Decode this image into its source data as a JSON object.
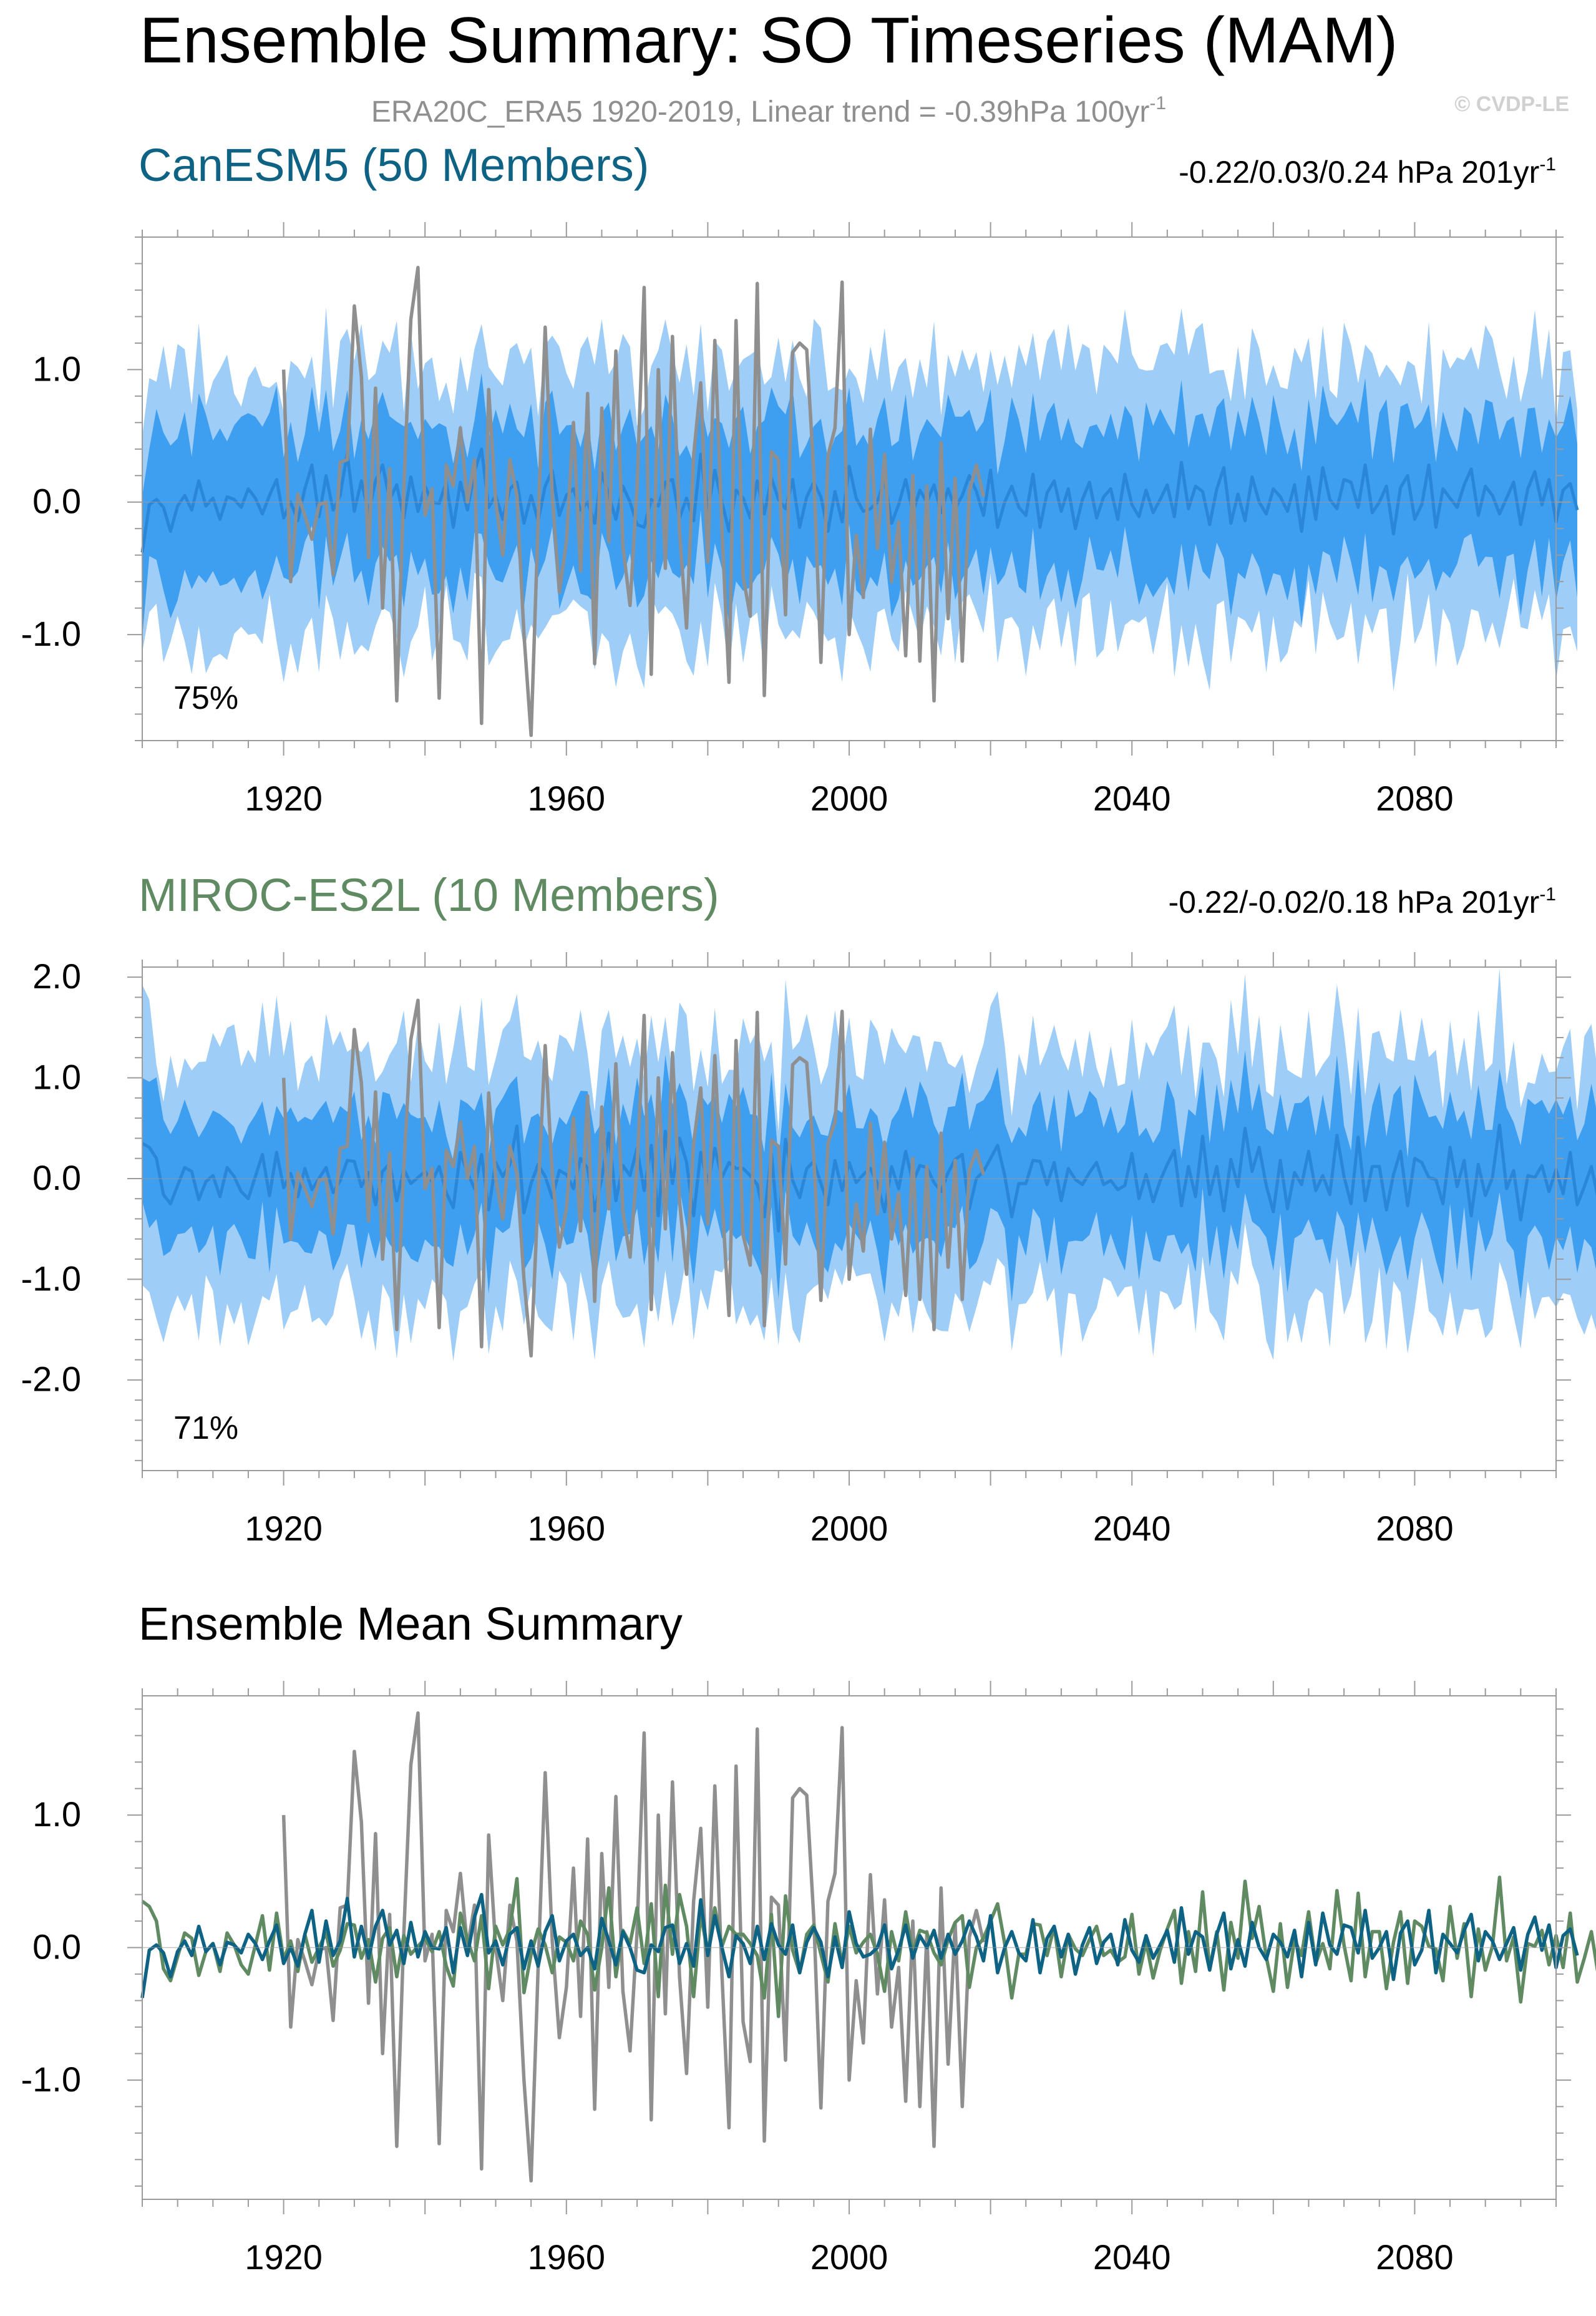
{
  "header": {
    "title": "Ensemble Summary: SO Timeseries (MAM)",
    "subtitle_main": "ERA20C_ERA5 1920-2019, Linear trend = -0.39hPa 100yr",
    "subtitle_sup": "-1",
    "credit": "© CVDP-LE"
  },
  "colors": {
    "outer_band": "#9ecdf8",
    "inner_band": "#3e9ef0",
    "ensemble_mean_line": "#2a86d8",
    "observations": "#8f8f8f",
    "canesm5": "#0e6384",
    "miroc": "#5f8a62",
    "zero_line": "#9b9b9b",
    "frame": "#9b9b9b"
  },
  "chart_data": [
    {
      "type": "area",
      "panel": "canesm5",
      "title": "CanESM5 (50 Members)",
      "trend_text": "-0.22/0.03/0.24 hPa 201yr",
      "trend_sup": "-1",
      "percent_label": "75%",
      "xlim": [
        1900,
        2100
      ],
      "ylim": [
        -1.8,
        2.0
      ],
      "xticks": [
        1920,
        1960,
        2000,
        2040,
        2080
      ],
      "yticks": [
        1.0,
        0.0,
        -1.0
      ],
      "ytick_labels": [
        "1.0",
        "0.0",
        "-1.0"
      ],
      "series": [
        {
          "role": "outer_band",
          "spread": 1.0
        },
        {
          "role": "inner_band",
          "spread": 0.55
        },
        {
          "role": "ensemble_mean"
        },
        {
          "role": "observations"
        }
      ],
      "ensemble_mean_mid": [
        -0.38,
        -0.02,
        0.02,
        -0.04,
        -0.22,
        -0.03,
        0.05,
        -0.06,
        0.16,
        -0.03,
        0.03,
        -0.13,
        0.04,
        0.02,
        -0.04,
        0.1,
        0.03,
        -0.09,
        0.05,
        0.17,
        -0.12,
        0.0,
        -0.14,
        0.1,
        0.28,
        -0.11,
        0.2,
        -0.06,
        0.05,
        0.37,
        -0.07,
        0.16,
        -0.08,
        0.16,
        0.28,
        0.02,
        0.13,
        -0.12,
        0.19,
        -0.07,
        0.12,
        0.0,
        -0.01,
        0.15,
        -0.19,
        0.15,
        -0.06,
        0.23,
        0.4,
        -0.04,
        0.05,
        -0.13,
        0.1,
        0.15,
        -0.16,
        0.05,
        -0.14,
        0.12,
        0.24,
        -0.1,
        0.05,
        0.1,
        -0.06,
        0.0,
        -0.16,
        0.22,
        0.05,
        -0.13,
        0.12,
        0.0,
        -0.17,
        -0.19,
        0.02,
        -0.03,
        0.15,
        0.17,
        -0.12,
        0.03,
        -0.14,
        0.36,
        -0.06,
        0.24,
        0.0,
        -0.22,
        0.09,
        0.03,
        -0.12,
        0.16,
        -0.09,
        0.18,
        0.02,
        -0.05,
        0.17,
        -0.19,
        0.04,
        0.15,
        0.04,
        -0.22,
        0.08,
        -0.15,
        0.27,
        0.03,
        -0.07,
        -0.05,
        0.0,
        0.17,
        -0.16,
        -0.02,
        0.17,
        -0.08,
        0.09,
        0.0,
        0.13,
        -0.08,
        0.1,
        -0.05,
        0.05,
        0.2,
        0.08,
        -0.1,
        0.24,
        -0.19,
        0.0,
        0.12,
        -0.04,
        -0.1,
        0.21,
        -0.19,
        0.07,
        0.16,
        -0.07,
        0.1,
        -0.2,
        0.02,
        0.15,
        -0.12,
        0.04,
        0.1,
        -0.13,
        0.21,
        -0.02,
        -0.11,
        0.09,
        -0.08,
        0.02,
        0.13,
        -0.11,
        0.3,
        -0.05,
        0.12,
        0.08,
        -0.17,
        0.1,
        0.26,
        -0.16,
        0.06,
        -0.14,
        0.19,
        0.0,
        -0.09,
        0.1,
        0.04,
        -0.07,
        0.13,
        -0.22,
        0.19,
        -0.13,
        0.26,
        0.02,
        -0.05,
        0.17,
        0.15,
        -0.04,
        0.28,
        -0.08,
        0.0,
        0.12,
        -0.24,
        0.11,
        0.2,
        -0.13,
        -0.02,
        0.28,
        -0.19,
        0.1,
        0.03,
        -0.04,
        0.13,
        0.25,
        -0.1,
        0.12,
        0.05,
        -0.09,
        0.03,
        0.15,
        -0.17,
        0.1,
        0.23,
        -0.02,
        0.17,
        -0.15,
        0.09,
        0.14,
        -0.06
      ]
    },
    {
      "type": "area",
      "panel": "miroc",
      "title": "MIROC-ES2L (10 Members)",
      "trend_text": "-0.22/-0.02/0.18 hPa 201yr",
      "trend_sup": "-1",
      "percent_label": "71%",
      "xlim": [
        1900,
        2100
      ],
      "ylim": [
        -2.9,
        2.1
      ],
      "xticks": [
        1920,
        1960,
        2000,
        2040,
        2080
      ],
      "yticks": [
        2.0,
        1.0,
        0.0,
        -1.0,
        -2.0
      ],
      "ytick_labels": [
        "2.0",
        "1.0",
        "0.0",
        "-1.0",
        "-2.0"
      ],
      "series": [
        {
          "role": "outer_band",
          "spread": 1.25
        },
        {
          "role": "inner_band",
          "spread": 0.65
        },
        {
          "role": "ensemble_mean"
        },
        {
          "role": "observations"
        }
      ],
      "ensemble_mean_mid": [
        0.35,
        0.31,
        0.2,
        -0.16,
        -0.25,
        -0.07,
        0.11,
        0.07,
        -0.21,
        -0.03,
        0.03,
        -0.18,
        0.11,
        0.02,
        -0.13,
        -0.2,
        0.02,
        0.24,
        -0.17,
        0.26,
        -0.09,
        0.05,
        -0.18,
        0.1,
        -0.11,
        0.0,
        0.11,
        -0.14,
        -0.02,
        0.18,
        0.17,
        -0.08,
        0.06,
        -0.26,
        0.07,
        0.15,
        -0.22,
        0.09,
        -0.05,
        0.01,
        0.07,
        -0.03,
        0.12,
        -0.14,
        -0.29,
        0.26,
        0.06,
        -0.1,
        0.24,
        -0.31,
        0.16,
        0.02,
        0.14,
        0.52,
        -0.34,
        -0.05,
        0.14,
        0.02,
        -0.19,
        0.08,
        0.04,
        -0.1,
        0.2,
        0.1,
        -0.32,
        0.0,
        0.45,
        -0.22,
        0.13,
        0.03,
        0.3,
        -0.12,
        0.33,
        -0.37,
        0.47,
        -0.05,
        0.4,
        0.16,
        -0.37,
        0.26,
        -0.05,
        0.3,
        0.01,
        0.16,
        0.1,
        0.1,
        0.03,
        -0.06,
        -0.38,
        0.25,
        -0.52,
        0.39,
        -0.02,
        -0.19,
        0.1,
        0.17,
        -0.05,
        -0.26,
        0.18,
        -0.12,
        0.16,
        -0.04,
        0.04,
        0.1,
        -0.05,
        -0.33,
        0.12,
        -0.1,
        0.27,
        -0.04,
        0.13,
        0.11,
        -0.04,
        -0.13,
        0.06,
        0.19,
        0.24,
        -0.3,
        0.0,
        0.07,
        0.2,
        0.33,
        0.03,
        -0.38,
        -0.05,
        -0.05,
        0.18,
        0.17,
        -0.06,
        0.16,
        -0.22,
        0.1,
        -0.01,
        -0.06,
        0.06,
        0.16,
        -0.06,
        -0.02,
        -0.11,
        -0.07,
        0.25,
        -0.2,
        0.04,
        -0.23,
        -0.02,
        0.14,
        0.28,
        -0.27,
        0.12,
        -0.18,
        0.42,
        -0.16,
        0.12,
        -0.32,
        0.19,
        -0.08,
        0.5,
        0.07,
        0.31,
        -0.07,
        -0.33,
        0.18,
        -0.3,
        0.06,
        -0.06,
        0.27,
        -0.12,
        0.03,
        -0.16,
        0.43,
        0.02,
        -0.25,
        0.41,
        -0.22,
        0.12,
        0.12,
        -0.31,
        0.04,
        0.27,
        -0.27,
        0.2,
        0.16,
        0.01,
        -0.01,
        -0.25,
        0.31,
        -0.08,
        0.18,
        -0.37,
        0.14,
        -0.17,
        0.01,
        0.53,
        -0.1,
        0.08,
        -0.41,
        0.03,
        0.01,
        0.13,
        -0.13,
        0.09,
        -0.15,
        0.26,
        -0.26,
        -0.08,
        0.12,
        -0.22
      ]
    },
    {
      "type": "line",
      "panel": "mean",
      "title": "Ensemble Mean Summary",
      "xlim": [
        1900,
        2100
      ],
      "ylim": [
        -1.9,
        1.9
      ],
      "xticks": [
        1920,
        1960,
        2000,
        2040,
        2080
      ],
      "yticks": [
        1.0,
        0.0,
        -1.0
      ],
      "ytick_labels": [
        "1.0",
        "0.0",
        "-1.0"
      ],
      "series": [
        {
          "role": "observations"
        },
        {
          "role": "miroc_mean"
        },
        {
          "role": "canesm5_mean"
        }
      ]
    }
  ],
  "observations": {
    "x_start": 1920,
    "values": [
      1.0,
      -0.6,
      0.06,
      -0.1,
      -0.28,
      -0.02,
      0.0,
      -0.55,
      0.3,
      0.32,
      1.48,
      0.95,
      -0.42,
      0.86,
      -0.8,
      0.25,
      -1.5,
      0.1,
      1.38,
      1.77,
      -0.1,
      0.1,
      -1.48,
      0.28,
      0.12,
      0.56,
      0.0,
      0.32,
      -1.67,
      0.85,
      0.0,
      -0.4,
      0.32,
      0.05,
      -1.0,
      -1.76,
      -0.15,
      1.32,
      0.05,
      -0.68,
      -0.3,
      0.6,
      -0.52,
      0.82,
      -1.22,
      0.71,
      -0.3,
      1.14,
      -0.33,
      -0.78,
      0.12,
      1.62,
      -1.3,
      1.0,
      -0.5,
      1.25,
      -0.22,
      -0.95,
      0.35,
      0.9,
      -0.45,
      1.22,
      -0.2,
      -1.36,
      1.37,
      -0.56,
      -0.86,
      1.65,
      -1.46,
      0.38,
      0.32,
      -0.85,
      1.13,
      1.2,
      1.15,
      0.22,
      -1.21,
      0.35,
      0.56,
      1.66,
      -1.0,
      -0.25,
      -0.72,
      0.55,
      -0.35,
      0.36,
      -0.6,
      -0.15,
      -1.16,
      0.2,
      -1.2,
      0.12,
      -1.5,
      0.45,
      -0.88,
      0.18,
      -1.2,
      0.08,
      0.28,
      0.04
    ]
  }
}
